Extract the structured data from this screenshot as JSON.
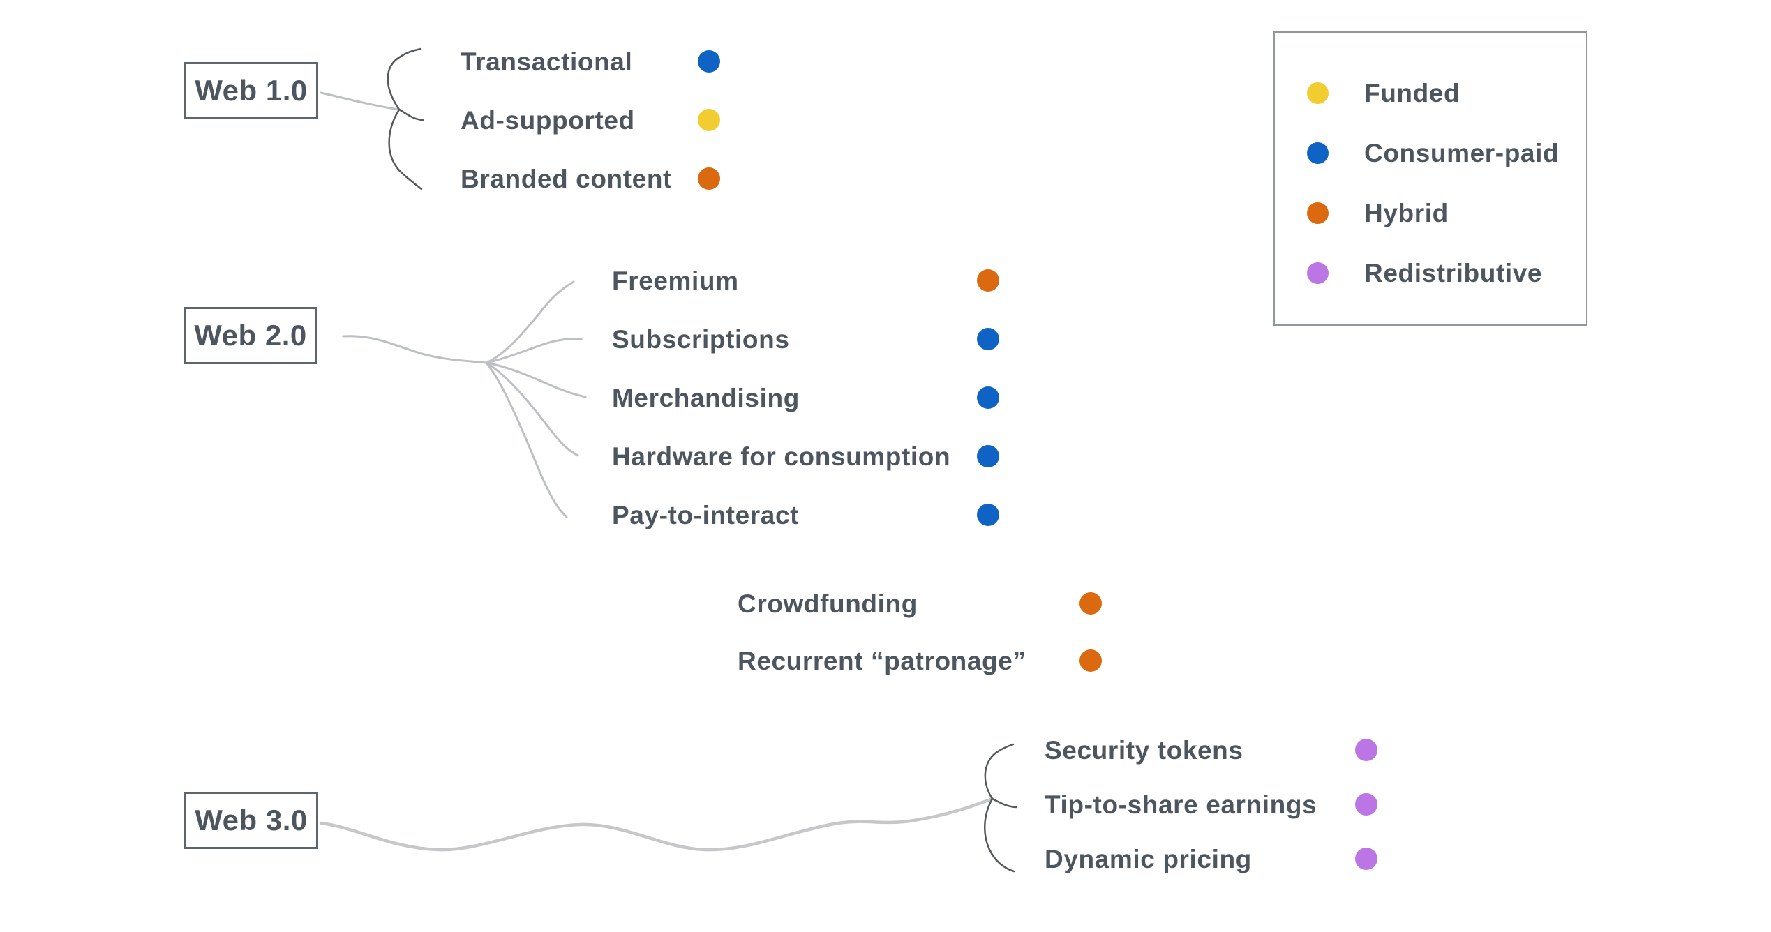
{
  "colors": {
    "funded": "#f2cd30",
    "consumer_paid": "#0f63c5",
    "hybrid": "#da690f",
    "redistributive": "#bb75e5",
    "text": "#4d565f"
  },
  "nodes": [
    {
      "label": "Web 1.0"
    },
    {
      "label": "Web 2.0"
    },
    {
      "label": "Web 3.0"
    }
  ],
  "groups": [
    {
      "node": "Web 1.0",
      "items": [
        {
          "label": "Transactional",
          "category": "consumer_paid"
        },
        {
          "label": "Ad-supported",
          "category": "funded"
        },
        {
          "label": "Branded content",
          "category": "hybrid"
        }
      ]
    },
    {
      "node": "Web 2.0",
      "items": [
        {
          "label": "Freemium",
          "category": "hybrid"
        },
        {
          "label": "Subscriptions",
          "category": "consumer_paid"
        },
        {
          "label": "Merchandising",
          "category": "consumer_paid"
        },
        {
          "label": "Hardware for consumption",
          "category": "consumer_paid"
        },
        {
          "label": "Pay-to-interact",
          "category": "consumer_paid"
        }
      ]
    },
    {
      "node": null,
      "items": [
        {
          "label": "Crowdfunding",
          "category": "hybrid"
        },
        {
          "label": "Recurrent “patronage”",
          "category": "hybrid"
        }
      ]
    },
    {
      "node": "Web 3.0",
      "items": [
        {
          "label": "Security tokens",
          "category": "redistributive"
        },
        {
          "label": "Tip-to-share earnings",
          "category": "redistributive"
        },
        {
          "label": "Dynamic pricing",
          "category": "redistributive"
        }
      ]
    }
  ],
  "legend": {
    "items": [
      {
        "label": "Funded",
        "category": "funded"
      },
      {
        "label": "Consumer-paid",
        "category": "consumer_paid"
      },
      {
        "label": "Hybrid",
        "category": "hybrid"
      },
      {
        "label": "Redistributive",
        "category": "redistributive"
      }
    ]
  }
}
